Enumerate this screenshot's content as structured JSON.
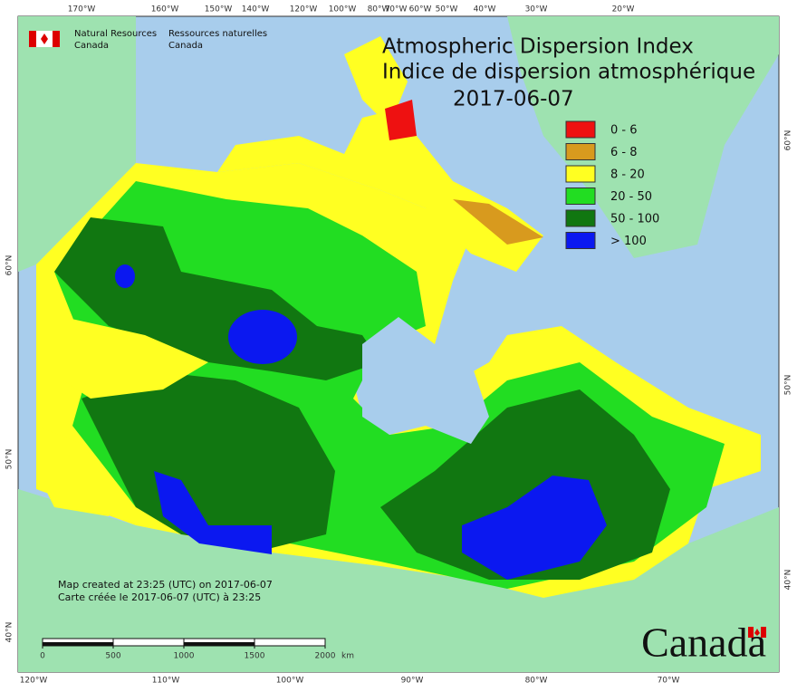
{
  "header": {
    "agency_en": [
      "Natural Resources",
      "Canada"
    ],
    "agency_fr": [
      "Ressources naturelles",
      "Canada"
    ],
    "title_en": "Atmospheric Dispersion Index",
    "title_fr": "Indice de dispersion atmosphérique",
    "date": "2017-06-07"
  },
  "legend": [
    {
      "label": "0 - 6",
      "color": "#ee1111"
    },
    {
      "label": "6 - 8",
      "color": "#d89a1e"
    },
    {
      "label": "8 - 20",
      "color": "#ffff22"
    },
    {
      "label": "20 - 50",
      "color": "#22dd22"
    },
    {
      "label": "50 - 100",
      "color": "#117711"
    },
    {
      "label": "> 100",
      "color": "#0b18f0"
    }
  ],
  "graticule": {
    "top": [
      "170°W",
      "160°W",
      "150°W",
      "140°W",
      "120°W",
      "100°W",
      "80°W",
      "70°W",
      "60°W",
      "50°W",
      "40°W",
      "30°W",
      "20°W"
    ],
    "bottom": [
      "120°W",
      "110°W",
      "100°W",
      "90°W",
      "80°W",
      "70°W"
    ],
    "left": [
      "60°N",
      "50°N",
      "40°N"
    ],
    "right": [
      "60°N",
      "50°N",
      "40°N"
    ]
  },
  "credits": [
    "Map created at 23:25 (UTC) on 2017-06-07",
    "Carte créée le 2017-06-07 (UTC) à 23:25"
  ],
  "scale": {
    "ticks": [
      0,
      500,
      1000,
      1500,
      2000
    ],
    "unit": "km"
  },
  "wordmark": "Canada"
}
